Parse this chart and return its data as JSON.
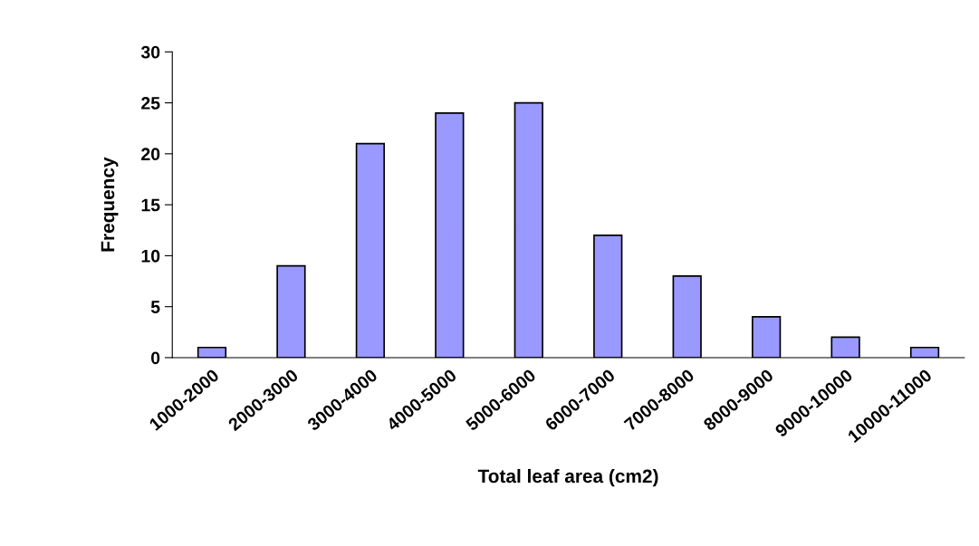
{
  "chart_data": {
    "type": "bar",
    "xlabel": "Total leaf area (cm2)",
    "ylabel": "Frequency",
    "categories": [
      "1000-2000",
      "2000-3000",
      "3000-4000",
      "4000-5000",
      "5000-6000",
      "6000-7000",
      "7000-8000",
      "8000-9000",
      "9000-10000",
      "10000-11000"
    ],
    "values": [
      1,
      9,
      21,
      24,
      25,
      12,
      8,
      4,
      2,
      1
    ],
    "color": "#9999ff",
    "ylim": [
      0,
      30
    ],
    "yticks": [
      0,
      5,
      10,
      15,
      20,
      25,
      30
    ],
    "grid": false,
    "legend": false
  }
}
